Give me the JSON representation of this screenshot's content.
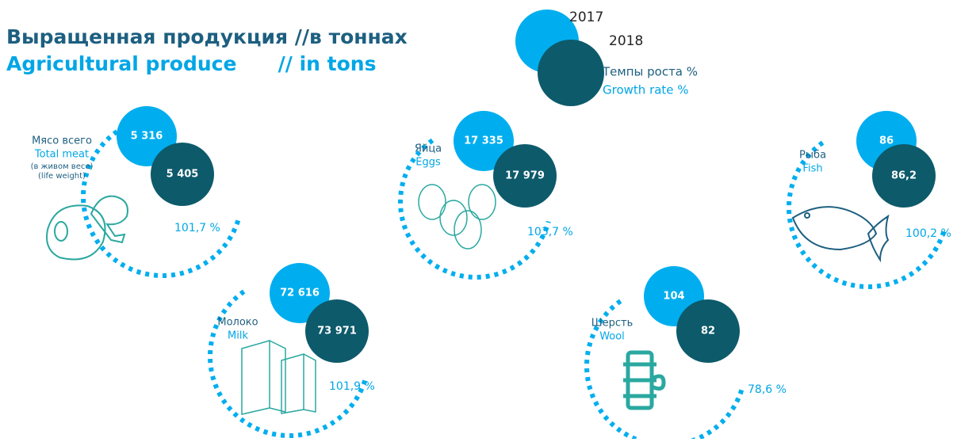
{
  "header": {
    "title_ru": "Выращенная продукция //в тоннах",
    "title_en": "Agricultural produce      // in tons"
  },
  "legend": {
    "year_2017": "2017",
    "year_2018": "2018",
    "rate_ru": "Темпы роста %",
    "rate_en": "Growth rate %"
  },
  "items": [
    {
      "label_ru": "Мясо всего",
      "label_en": "Total meat",
      "note_ru": "(в живом весе)",
      "note_en": "(life weight)",
      "value_2017": "5 316",
      "value_2018": "5 405",
      "growth": "101,7 %"
    },
    {
      "label_ru": "Яйца",
      "label_en": "Eggs",
      "value_2017": "17 335",
      "value_2018": "17 979",
      "growth": "103,7 %"
    },
    {
      "label_ru": "Рыба",
      "label_en": "Fish",
      "value_2017": "86",
      "value_2018": "86,2",
      "growth": "100,2 %"
    },
    {
      "label_ru": "Молоко",
      "label_en": "Milk",
      "value_2017": "72 616",
      "value_2018": "73 971",
      "growth": "101,9 %"
    },
    {
      "label_ru": "Шерсть",
      "label_en": "Wool",
      "value_2017": "104",
      "value_2018": "82",
      "growth": "78,6 %"
    }
  ]
}
